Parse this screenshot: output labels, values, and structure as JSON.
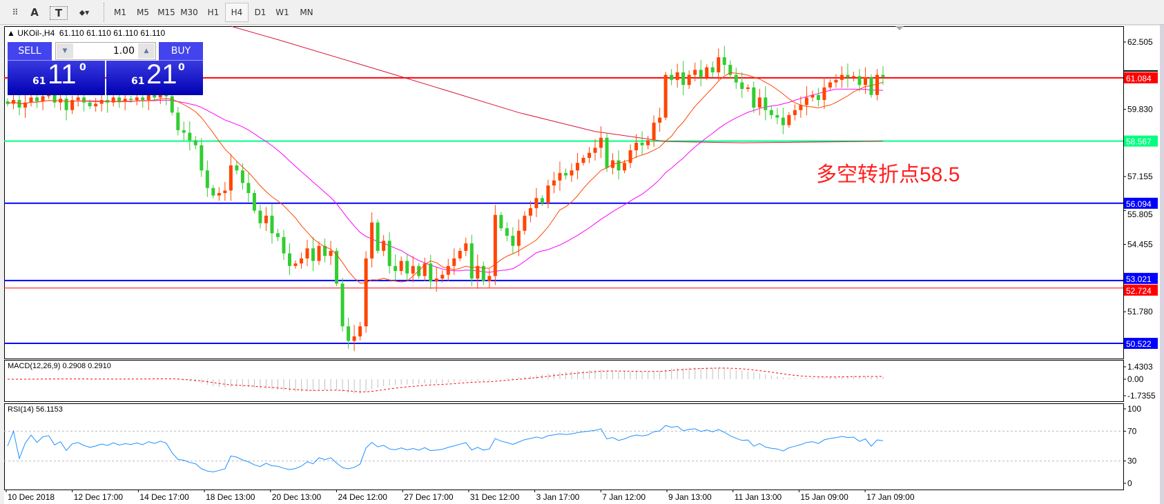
{
  "toolbar": {
    "tools": [
      {
        "name": "fibo-grid-icon",
        "glyph": "⠿"
      },
      {
        "name": "text-icon",
        "glyph": "A"
      },
      {
        "name": "text-label-icon",
        "glyph": "T"
      },
      {
        "name": "shapes-icon",
        "glyph": "⬥▾"
      }
    ],
    "timeframes": [
      "M1",
      "M5",
      "M15",
      "M30",
      "H1",
      "H4",
      "D1",
      "W1",
      "MN"
    ],
    "active_timeframe": "H4"
  },
  "legend": {
    "symbol_tf": "UKOil-,H4",
    "ohlc": "61.110 61.110 61.110 61.110"
  },
  "trade_panel": {
    "sell_label": "SELL",
    "buy_label": "BUY",
    "lot": "1.00",
    "sell_price": {
      "prefix": "61",
      "big": "11",
      "sup": "0"
    },
    "buy_price": {
      "prefix": "61",
      "big": "21",
      "sup": "0"
    }
  },
  "annotation": "多空转折点58.5",
  "colors": {
    "bull": "#ff4500",
    "bear": "#32cd32",
    "ma_fast": "#ff4500",
    "ma_mid": "#ff00ff",
    "ma_slow": "#dc143c",
    "rsi": "#1e90ff",
    "macd_hist": "#c0c0c0",
    "macd_signal": "#ff0000"
  },
  "chart_data": {
    "type": "candlestick",
    "symbol": "UKOil-",
    "timeframe": "H4",
    "price_axis_ticks": [
      "62.505",
      "59.830",
      "57.155",
      "55.805",
      "54.455",
      "51.780"
    ],
    "ylim": [
      50.3,
      62.9
    ],
    "time_labels": [
      "10 Dec 2018",
      "12 Dec 17:00",
      "14 Dec 17:00",
      "18 Dec 13:00",
      "20 Dec 13:00",
      "24 Dec 12:00",
      "27 Dec 17:00",
      "31 Dec 12:00",
      "3 Jan 17:00",
      "7 Jan 12:00",
      "9 Jan 13:00",
      "11 Jan 13:00",
      "15 Jan 09:00",
      "17 Jan 09:00"
    ],
    "close": [
      60.05,
      60.2,
      59.9,
      60.1,
      60.3,
      60.15,
      60.35,
      60.4,
      60.1,
      60.25,
      59.8,
      60.2,
      60.3,
      60.1,
      59.95,
      60.05,
      60.2,
      60.1,
      60.3,
      60.15,
      60.25,
      60.2,
      60.3,
      60.2,
      60.4,
      60.3,
      60.45,
      60.35,
      59.7,
      59.0,
      58.9,
      58.6,
      58.4,
      57.4,
      56.7,
      56.4,
      56.5,
      56.6,
      57.6,
      57.4,
      56.9,
      56.5,
      55.8,
      55.3,
      55.6,
      54.9,
      54.75,
      54.1,
      53.6,
      53.7,
      53.9,
      54.3,
      53.8,
      54.4,
      54.0,
      54.2,
      52.9,
      51.2,
      50.62,
      50.8,
      51.2,
      53.9,
      55.33,
      54.2,
      54.6,
      53.6,
      53.4,
      53.8,
      53.3,
      53.6,
      53.2,
      53.7,
      52.98,
      53.1,
      53.25,
      53.6,
      53.9,
      54.2,
      54.5,
      53.1,
      53.6,
      53.0,
      53.2,
      55.63,
      55.1,
      54.8,
      54.4,
      55.0,
      55.6,
      55.9,
      56.3,
      56.1,
      56.8,
      57.0,
      57.3,
      57.2,
      57.4,
      57.7,
      57.9,
      58.1,
      58.3,
      58.7,
      57.5,
      57.8,
      57.4,
      57.7,
      58.2,
      58.5,
      58.4,
      58.6,
      59.3,
      59.5,
      61.2,
      61.0,
      61.3,
      60.8,
      61.2,
      61.4,
      61.1,
      61.5,
      61.3,
      61.9,
      61.6,
      61.2,
      60.9,
      60.64,
      60.7,
      59.9,
      60.3,
      59.8,
      59.6,
      59.5,
      59.2,
      59.6,
      59.8,
      60.0,
      60.3,
      60.4,
      60.2,
      60.7,
      60.9,
      61.0,
      61.2,
      61.1,
      61.15,
      60.8,
      61.1,
      60.4,
      61.2,
      61.11
    ],
    "ma_slow_points": [
      [
        46,
        62.6
      ],
      [
        66,
        61.2
      ],
      [
        87,
        59.7
      ],
      [
        100,
        58.95
      ],
      [
        112,
        58.55
      ],
      [
        125,
        58.5
      ],
      [
        149,
        58.56
      ]
    ],
    "horizontal_lines": [
      {
        "price": 61.084,
        "label": "61.084",
        "color": "#ff0000",
        "width": 2
      },
      {
        "price": 58.567,
        "label": "58.567",
        "color": "#00ff7f",
        "width": 2
      },
      {
        "price": 56.094,
        "label": "56.094",
        "color": "#0000ff",
        "width": 2
      },
      {
        "price": 53.021,
        "label": "53.021",
        "color": "#0000ff",
        "width": 2
      },
      {
        "price": 52.724,
        "label": "52.724",
        "color": "#ff0000",
        "width": 1
      },
      {
        "price": 50.522,
        "label": "50.522",
        "color": "#0000ff",
        "width": 2
      }
    ],
    "macd": {
      "label": "MACD(12,26,9) 0.2908 0.2910",
      "ticks": [
        "1.4303",
        "0.00",
        "-1.7355"
      ],
      "range": [
        -1.7355,
        1.4303
      ]
    },
    "rsi": {
      "label": "RSI(14) 56.1153",
      "ticks": [
        "100",
        "70",
        "30",
        "0"
      ],
      "levels": [
        70,
        30
      ]
    }
  }
}
